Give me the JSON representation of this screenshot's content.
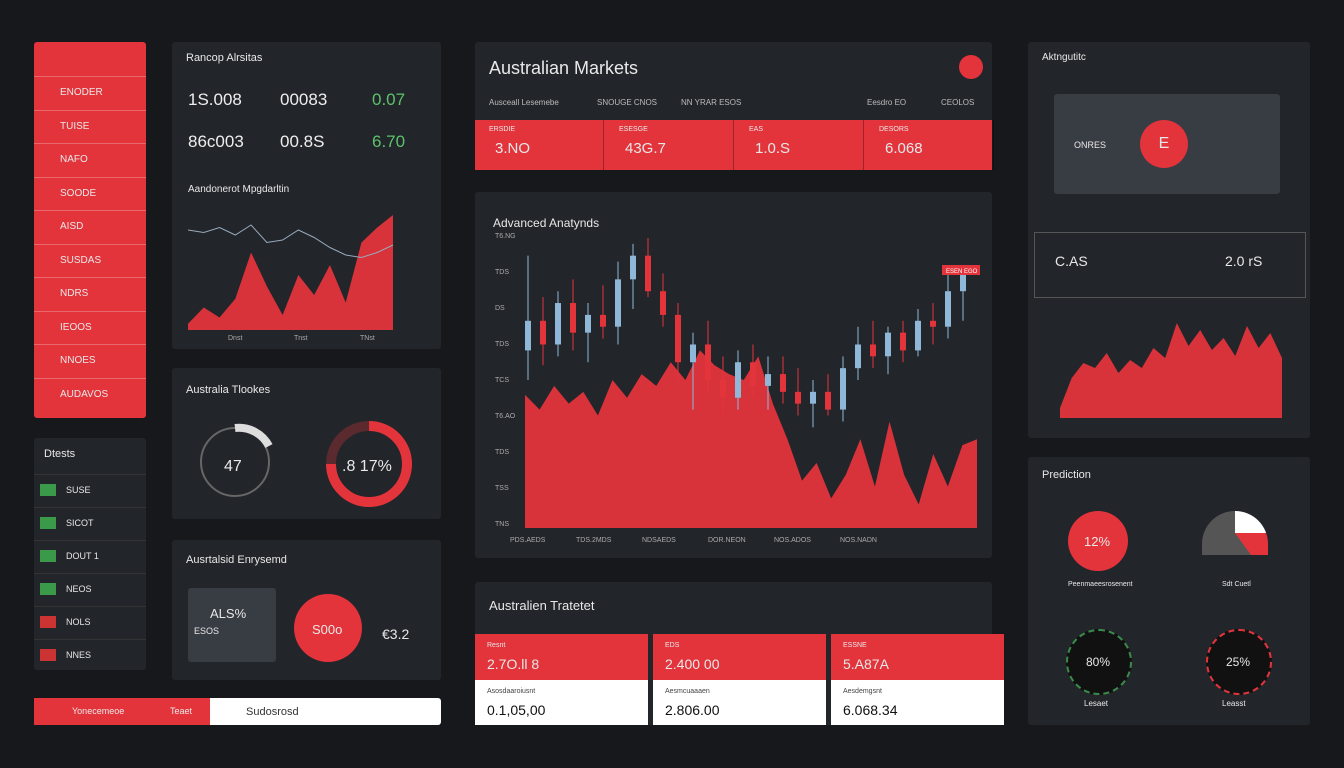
{
  "sidebar": {
    "items": [
      "ENODER",
      "TUISE",
      "NAFO",
      "SOODE",
      "AISD",
      "SUSDAS",
      "NDRS",
      "IEOOS",
      "NNOES",
      "AUDAVOS"
    ]
  },
  "watchlist": {
    "title": "Dtests",
    "items": [
      "SUSE",
      "SICOT",
      "DOUT 1",
      "NEOS",
      "NOLS",
      "NNES"
    ]
  },
  "footer_bar": {
    "button": "Yonecemeoe",
    "label": "Teaet",
    "input": "Sudosrosd"
  },
  "tickers": {
    "title": "Rancop Alrsitas",
    "values": [
      "1S.008",
      "00083",
      "0.07",
      "86c003",
      "00.8S",
      "6.70"
    ],
    "chart": {
      "title": "Aandonerot Mpgdarltin",
      "ylim": [
        0,
        100
      ],
      "area": [
        5,
        18,
        10,
        25,
        62,
        35,
        12,
        44,
        28,
        52,
        22,
        70,
        82,
        92
      ],
      "line": [
        80,
        78,
        82,
        76,
        84,
        70,
        72,
        80,
        74,
        66,
        60,
        58,
        62,
        68
      ],
      "x_labels": [
        "Dnst",
        "Tnst",
        "TNst"
      ]
    }
  },
  "gauges": {
    "title": "Australia Tlookes",
    "labels": [
      "47",
      ".8 17%"
    ]
  },
  "sentiment": {
    "title": "Ausrtalsid Enrysemd",
    "card_value": "ALS%",
    "card_sub": "ESOS",
    "circle_value": "S00o",
    "side_value": "€3.2"
  },
  "markets": {
    "title": "Australian Markets",
    "filters": [
      "Ausceall Lesemebe",
      "SNOUGE CNOS",
      "NN YRAR ESOS",
      "Eesdro EO",
      "CEOLOS"
    ],
    "strip": [
      {
        "label": "ERSDIE",
        "value": "3.NO"
      },
      {
        "label": "ESESGE",
        "value": "43G.7"
      },
      {
        "label": "EAS",
        "value": "1.0.S"
      },
      {
        "label": "DESORS",
        "value": "6.068"
      }
    ]
  },
  "analysis": {
    "title": "Advanced Anatynds",
    "ylim": [
      0,
      100
    ],
    "area": [
      45,
      40,
      48,
      42,
      46,
      38,
      50,
      44,
      52,
      48,
      56,
      50,
      60,
      55,
      52,
      50,
      58,
      42,
      30,
      16,
      22,
      10,
      18,
      30,
      14,
      36,
      18,
      8,
      25,
      14,
      28,
      30
    ],
    "candles": [
      {
        "o": 60,
        "h": 92,
        "l": 50,
        "c": 70
      },
      {
        "o": 70,
        "h": 78,
        "l": 55,
        "c": 62
      },
      {
        "o": 62,
        "h": 80,
        "l": 58,
        "c": 76
      },
      {
        "o": 76,
        "h": 84,
        "l": 60,
        "c": 66
      },
      {
        "o": 66,
        "h": 76,
        "l": 56,
        "c": 72
      },
      {
        "o": 72,
        "h": 82,
        "l": 64,
        "c": 68
      },
      {
        "o": 68,
        "h": 90,
        "l": 62,
        "c": 84
      },
      {
        "o": 84,
        "h": 96,
        "l": 74,
        "c": 92
      },
      {
        "o": 92,
        "h": 98,
        "l": 78,
        "c": 80
      },
      {
        "o": 80,
        "h": 86,
        "l": 68,
        "c": 72
      },
      {
        "o": 72,
        "h": 76,
        "l": 50,
        "c": 56
      },
      {
        "o": 56,
        "h": 66,
        "l": 40,
        "c": 62
      },
      {
        "o": 62,
        "h": 70,
        "l": 46,
        "c": 50
      },
      {
        "o": 50,
        "h": 58,
        "l": 38,
        "c": 44
      },
      {
        "o": 44,
        "h": 60,
        "l": 40,
        "c": 56
      },
      {
        "o": 56,
        "h": 62,
        "l": 44,
        "c": 48
      },
      {
        "o": 48,
        "h": 58,
        "l": 40,
        "c": 52
      },
      {
        "o": 52,
        "h": 58,
        "l": 42,
        "c": 46
      },
      {
        "o": 46,
        "h": 54,
        "l": 38,
        "c": 42
      },
      {
        "o": 42,
        "h": 50,
        "l": 34,
        "c": 46
      },
      {
        "o": 46,
        "h": 52,
        "l": 38,
        "c": 40
      },
      {
        "o": 40,
        "h": 58,
        "l": 36,
        "c": 54
      },
      {
        "o": 54,
        "h": 68,
        "l": 50,
        "c": 62
      },
      {
        "o": 62,
        "h": 70,
        "l": 54,
        "c": 58
      },
      {
        "o": 58,
        "h": 68,
        "l": 52,
        "c": 66
      },
      {
        "o": 66,
        "h": 70,
        "l": 56,
        "c": 60
      },
      {
        "o": 60,
        "h": 74,
        "l": 58,
        "c": 70
      },
      {
        "o": 70,
        "h": 76,
        "l": 62,
        "c": 68
      },
      {
        "o": 68,
        "h": 86,
        "l": 64,
        "c": 80
      },
      {
        "o": 80,
        "h": 88,
        "l": 70,
        "c": 86
      }
    ],
    "y_labels": [
      "T6.NG",
      "TDS",
      "DS",
      "TDS",
      "TCS",
      "T6.AO",
      "TDS",
      "TSS",
      "TNS"
    ],
    "x_labels": [
      "PDS.AEDS",
      "TDS.2MDS",
      "NDSAEDS",
      "DOR.NEON",
      "NOS.ADOS",
      "NOS.NADN"
    ],
    "tag": "ESEN EGO"
  },
  "tracker": {
    "title": "Australien Tratetet",
    "cards": [
      {
        "label": "Resnt",
        "top": "2.7O.ll 8",
        "sub": "Asosdaaroiusnt",
        "bottom": "0.1,05,00"
      },
      {
        "label": "EDS",
        "top": "2.400 00",
        "sub": "Aesmcuaaaen",
        "bottom": "2.806.00"
      },
      {
        "label": "ESSNE",
        "top": "5.A87A",
        "sub": "Aesdemgsnt",
        "bottom": "6.068.34"
      }
    ]
  },
  "insights": {
    "title": "Aktngutitc",
    "card_label": "ONRES",
    "card_icon": "E",
    "stats": [
      "C.AS",
      "2.0 rS"
    ],
    "chart": {
      "ylim": [
        0,
        100
      ],
      "area": [
        10,
        40,
        55,
        50,
        65,
        45,
        58,
        50,
        70,
        60,
        95,
        72,
        88,
        68,
        80,
        62,
        92,
        70,
        85,
        60
      ]
    }
  },
  "prediction": {
    "title": "Prediction",
    "pies": [
      {
        "value": "12%",
        "caption": "Peenmaeesrosenent"
      },
      {
        "caption": "Sdt Cuetl"
      }
    ],
    "gauges": [
      {
        "value": "80%",
        "caption": "Lesaet"
      },
      {
        "value": "25%",
        "caption": "Leasst"
      }
    ]
  }
}
